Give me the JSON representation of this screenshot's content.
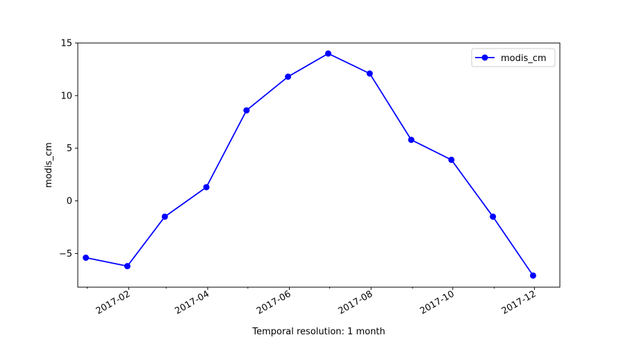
{
  "chart_data": {
    "type": "line",
    "title": "",
    "xlabel": "Temporal resolution: 1 month",
    "ylabel": "modis_cm",
    "x": [
      "2016-12-31",
      "2017-01-31",
      "2017-02-28",
      "2017-03-31",
      "2017-04-30",
      "2017-05-31",
      "2017-06-30",
      "2017-07-31",
      "2017-08-31",
      "2017-09-30",
      "2017-10-31",
      "2017-11-30"
    ],
    "series": [
      {
        "name": "modis_cm",
        "color": "#0000ff",
        "marker": "circle",
        "values": [
          -5.4,
          -6.2,
          -1.5,
          1.3,
          8.6,
          11.8,
          14.0,
          12.1,
          5.8,
          3.9,
          -1.5,
          -7.1
        ]
      }
    ],
    "xlim": [
      "2016-12-25",
      "2017-12-20"
    ],
    "ylim": [
      -8.2,
      15.0
    ],
    "xticks": [
      {
        "date": "2017-02-01",
        "label": "2017-02"
      },
      {
        "date": "2017-04-01",
        "label": "2017-04"
      },
      {
        "date": "2017-06-01",
        "label": "2017-06"
      },
      {
        "date": "2017-08-01",
        "label": "2017-08"
      },
      {
        "date": "2017-10-01",
        "label": "2017-10"
      },
      {
        "date": "2017-12-01",
        "label": "2017-12"
      }
    ],
    "yticks": [
      {
        "value": -5,
        "label": "−5"
      },
      {
        "value": 0,
        "label": "0"
      },
      {
        "value": 5,
        "label": "5"
      },
      {
        "value": 10,
        "label": "10"
      },
      {
        "value": 15,
        "label": "15"
      }
    ],
    "grid": false,
    "legend_position": "top-right"
  }
}
